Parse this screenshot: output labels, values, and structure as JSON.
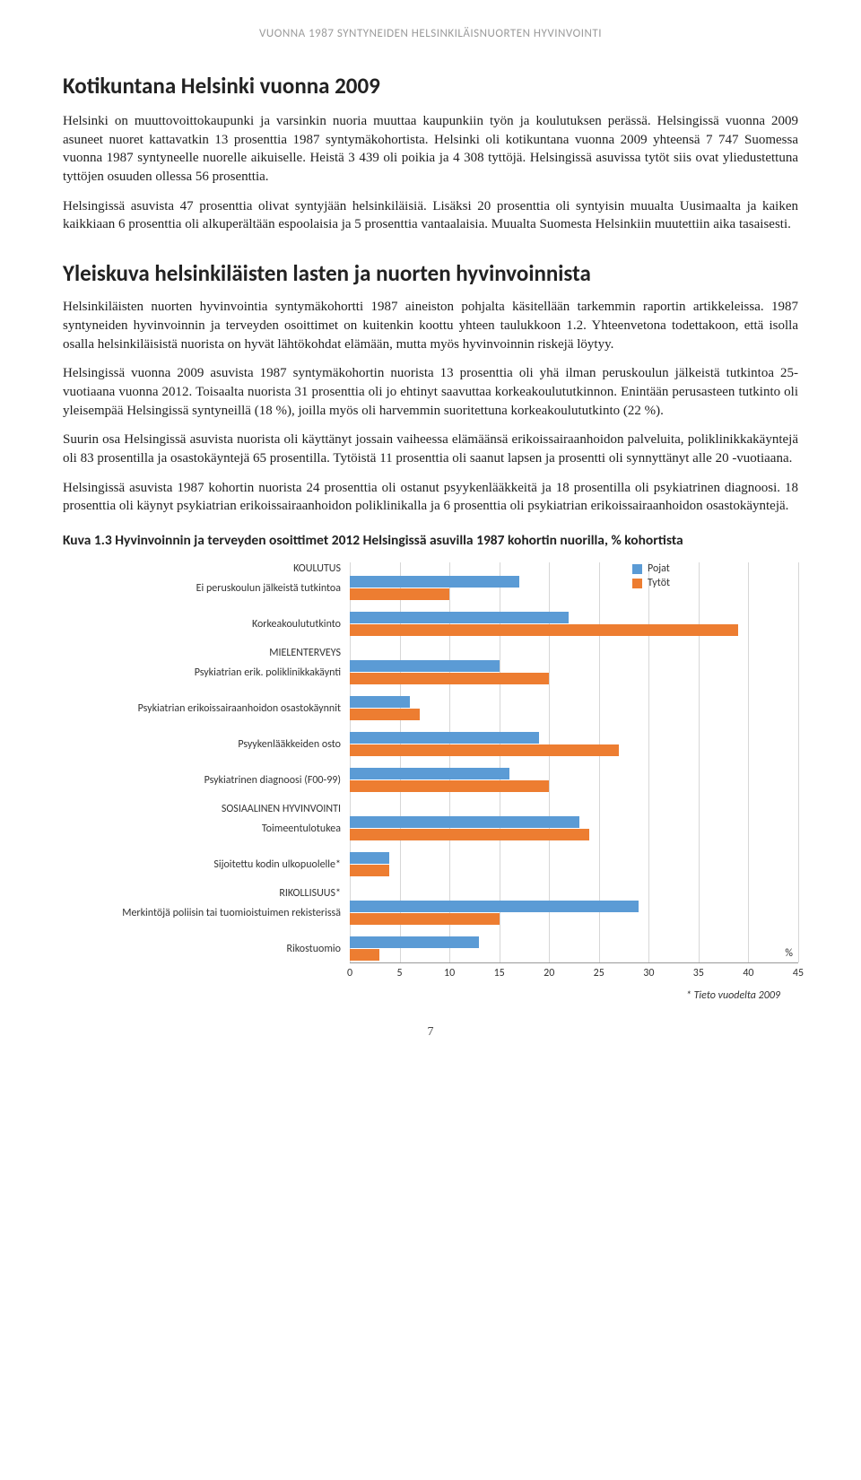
{
  "page_header": "VUONNA 1987 SYNTYNEIDEN HELSINKILÄISNUORTEN HYVINVOINTI",
  "section_title": "Kotikuntana Helsinki vuonna 2009",
  "para1": "Helsinki on muuttovoittokaupunki ja varsinkin nuoria muuttaa kaupunkiin työn ja koulutuksen perässä. Helsingissä vuonna 2009 asuneet nuoret kattavatkin 13 prosenttia 1987 syntymäkohortista. Helsinki oli kotikuntana vuonna 2009 yhteensä 7 747 Suomessa vuonna 1987 syntyneelle nuorelle aikuiselle. Heistä 3 439 oli poikia ja 4 308 tyttöjä. Helsingissä asuvissa tytöt siis ovat yliedustettuna tyttöjen osuuden ollessa 56 prosenttia.",
  "para2": "Helsingissä asuvista 47 prosenttia olivat syntyjään helsinkiläisiä. Lisäksi 20 prosenttia oli syntyisin muualta Uusimaalta ja kaiken kaikkiaan 6 prosenttia oli alkuperältään espoolaisia ja 5 prosenttia vantaalaisia. Muualta Suomesta Helsinkiin muutettiin aika tasaisesti.",
  "subsection_title": "Yleiskuva helsinkiläisten lasten ja nuorten hyvinvoinnista",
  "para3": "Helsinkiläisten nuorten hyvinvointia syntymäkohortti 1987 aineiston pohjalta käsitellään tarkemmin raportin artikkeleissa. 1987 syntyneiden hyvinvoinnin ja terveyden osoittimet on kuitenkin koottu yhteen taulukkoon 1.2. Yhteenvetona todettakoon, että isolla osalla helsinkiläisistä nuorista on hyvät lähtökohdat elämään, mutta myös hyvinvoinnin riskejä löytyy.",
  "para4": "Helsingissä vuonna 2009 asuvista 1987 syntymäkohortin nuorista 13 prosenttia oli yhä ilman peruskoulun jälkeistä tutkintoa 25-vuotiaana vuonna 2012. Toisaalta nuorista 31 prosenttia oli jo ehtinyt saavuttaa korkeakoulututkinnon. Enintään perusasteen tutkinto oli yleisempää Helsingissä syntyneillä (18 %), joilla myös oli harvemmin suoritettuna korkeakoulututkinto (22 %).",
  "para5": "Suurin osa Helsingissä asuvista nuorista oli käyttänyt jossain vaiheessa elämäänsä erikoissairaanhoidon palveluita, poliklinikkakäyntejä oli 83 prosentilla ja osastokäyntejä 65 prosentilla. Tytöistä 11 prosenttia oli saanut lapsen ja prosentti oli synnyttänyt alle 20 -vuotiaana.",
  "para6": "Helsingissä asuvista 1987 kohortin nuorista 24 prosenttia oli ostanut psyykenlääkkeitä ja 18 prosentilla oli psykiatrinen diagnoosi. 18 prosenttia oli käynyt psykiatrian erikoissairaanhoidon poliklinikalla ja 6 prosenttia oli psykiatrian erikoissairaanhoidon osastokäyntejä.",
  "figure_title": "Kuva 1.3 Hyvinvoinnin ja terveyden osoittimet 2012 Helsingissä asuvilla 1987 kohortin nuorilla, % kohortista",
  "chart": {
    "type": "grouped_horizontal_bar",
    "xmax": 45,
    "xtick_step": 5,
    "colors": {
      "pojat": "#5b9bd5",
      "tytot": "#ed7d31"
    },
    "grid_color": "#d7d7d7",
    "legend": [
      {
        "key": "pojat",
        "label": "Pojat"
      },
      {
        "key": "tytot",
        "label": "Tytöt"
      }
    ],
    "legend_left_pct": 63,
    "pct_label": "%",
    "x_axis_label": "",
    "footnote": "* Tieto vuodelta 2009",
    "rows": [
      {
        "type": "header",
        "label": "KOULUTUS"
      },
      {
        "type": "bar",
        "label": "Ei peruskoulun jälkeistä tutkintoa",
        "pojat": 17,
        "tytot": 10
      },
      {
        "type": "gap"
      },
      {
        "type": "bar",
        "label": "Korkeakoulututkinto",
        "pojat": 22,
        "tytot": 39
      },
      {
        "type": "gap"
      },
      {
        "type": "header",
        "label": "MIELENTERVEYS"
      },
      {
        "type": "bar",
        "label": "Psykiatrian erik. poliklinikkakäynti",
        "pojat": 15,
        "tytot": 20
      },
      {
        "type": "gap"
      },
      {
        "type": "bar",
        "label": "Psykiatrian erikoissairaanhoidon osastokäynnit",
        "pojat": 6,
        "tytot": 7
      },
      {
        "type": "gap"
      },
      {
        "type": "bar",
        "label": "Psyykenlääkkeiden osto",
        "pojat": 19,
        "tytot": 27
      },
      {
        "type": "gap"
      },
      {
        "type": "bar",
        "label": "Psykiatrinen diagnoosi (F00-99)",
        "pojat": 16,
        "tytot": 20
      },
      {
        "type": "gap"
      },
      {
        "type": "header",
        "label": "SOSIAALINEN HYVINVOINTI"
      },
      {
        "type": "bar",
        "label": "Toimeentulotukea",
        "pojat": 23,
        "tytot": 24
      },
      {
        "type": "gap"
      },
      {
        "type": "bar",
        "label": "Sijoitettu kodin ulkopuolelle*",
        "pojat": 4,
        "tytot": 4
      },
      {
        "type": "gap"
      },
      {
        "type": "header",
        "label": "RIKOLLISUUS*"
      },
      {
        "type": "bar",
        "label": "Merkintöjä poliisin tai tuomioistuimen rekisterissä",
        "pojat": 29,
        "tytot": 15
      },
      {
        "type": "gap"
      },
      {
        "type": "bar",
        "label": "Rikostuomio",
        "pojat": 13,
        "tytot": 3
      }
    ]
  },
  "page_number": "7"
}
